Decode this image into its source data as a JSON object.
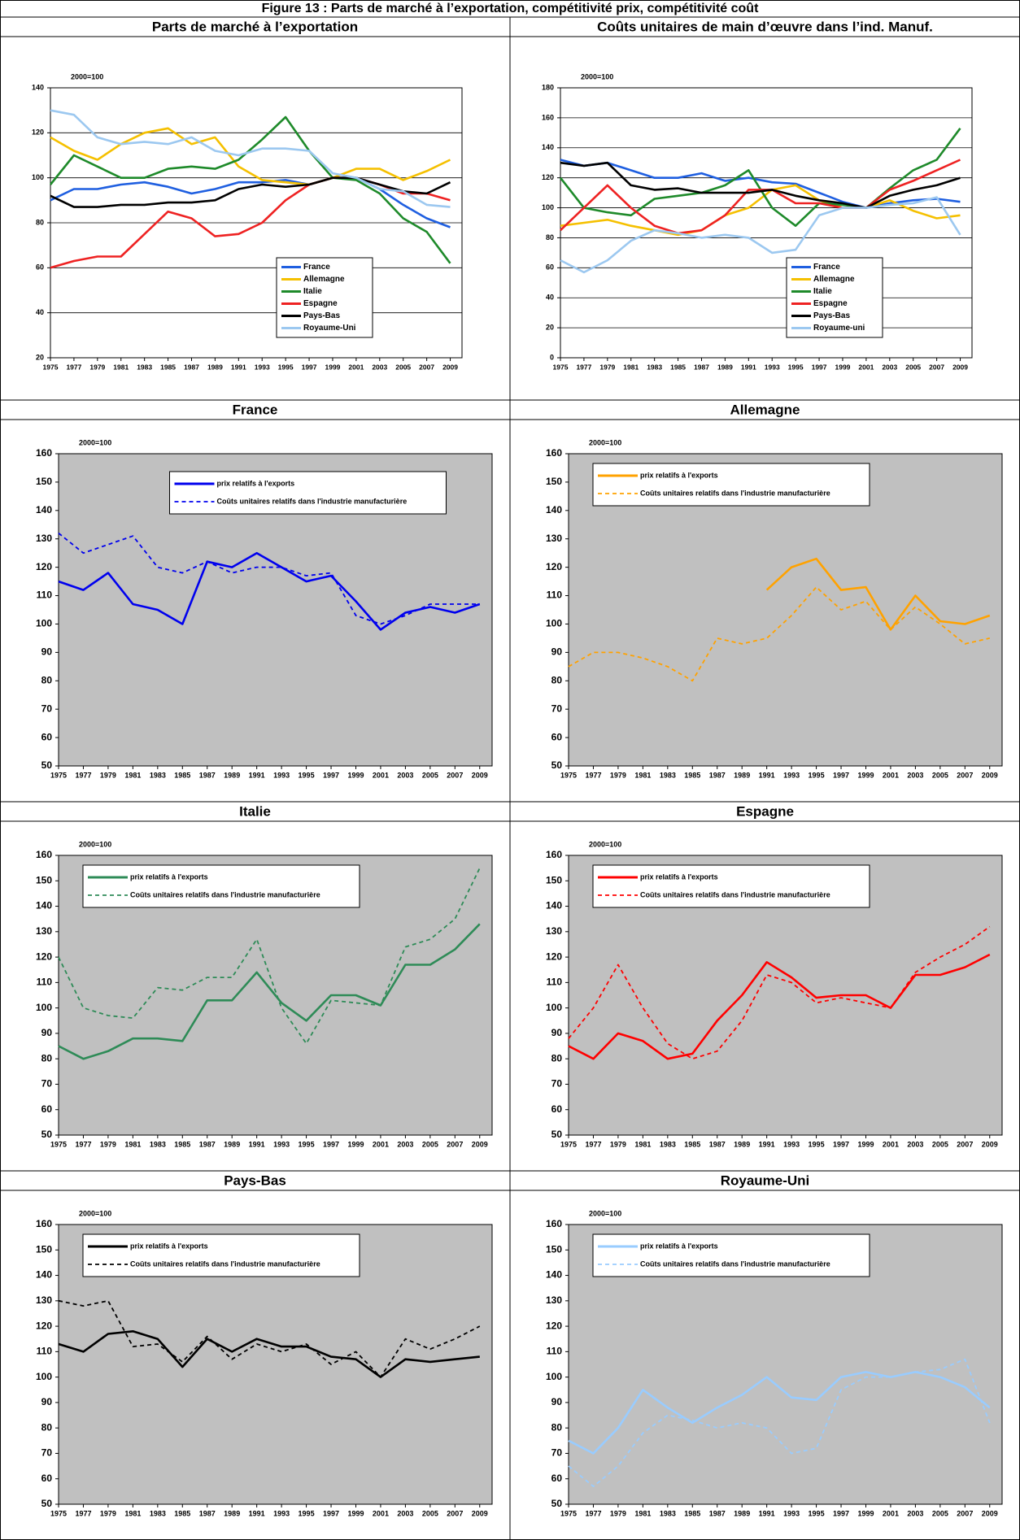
{
  "title": "Figure 13 : Parts de marché à l’exportation, compétitivité prix, compétitivité coût",
  "chart_data": [
    {
      "type": "line",
      "title": "Parts de marché à l’exportation",
      "annotation": "2000=100",
      "grid": true,
      "plot_background": "#ffffff",
      "legend": "lower right",
      "x": [
        1975,
        1977,
        1979,
        1981,
        1983,
        1985,
        1987,
        1989,
        1991,
        1993,
        1995,
        1997,
        1999,
        2001,
        2003,
        2005,
        2007,
        2009
      ],
      "xlim": [
        1975,
        2010
      ],
      "xticks": [
        1975,
        1977,
        1979,
        1981,
        1983,
        1985,
        1987,
        1989,
        1991,
        1993,
        1995,
        1997,
        1999,
        2001,
        2003,
        2005,
        2007,
        2009
      ],
      "ylim": [
        20,
        140
      ],
      "yticks": [
        20,
        40,
        60,
        80,
        100,
        120,
        140
      ],
      "series": [
        {
          "name": "France",
          "color": "#1f5fe0",
          "dash": false,
          "values": [
            90,
            95,
            95,
            97,
            98,
            96,
            93,
            95,
            98,
            98,
            99,
            97,
            100,
            100,
            95,
            88,
            82,
            78
          ]
        },
        {
          "name": "Allemagne",
          "color": "#f5c000",
          "dash": false,
          "values": [
            118,
            112,
            108,
            115,
            120,
            122,
            115,
            118,
            105,
            99,
            98,
            97,
            100,
            104,
            104,
            99,
            103,
            108
          ]
        },
        {
          "name": "Italie",
          "color": "#1e8a2a",
          "dash": false,
          "values": [
            97,
            110,
            105,
            100,
            100,
            104,
            105,
            104,
            108,
            117,
            127,
            112,
            100,
            99,
            93,
            82,
            76,
            62
          ]
        },
        {
          "name": "Espagne",
          "color": "#ee2222",
          "dash": false,
          "values": [
            60,
            63,
            65,
            65,
            75,
            85,
            82,
            74,
            75,
            80,
            90,
            97,
            100,
            100,
            97,
            93,
            93,
            90
          ]
        },
        {
          "name": "Pays-Bas",
          "color": "#000000",
          "dash": false,
          "values": [
            92,
            87,
            87,
            88,
            88,
            89,
            89,
            90,
            95,
            97,
            96,
            97,
            100,
            100,
            97,
            94,
            93,
            98
          ]
        },
        {
          "name": "Royaume-Uni",
          "color": "#9cc8f0",
          "dash": false,
          "values": [
            130,
            128,
            118,
            115,
            116,
            115,
            118,
            112,
            110,
            113,
            113,
            112,
            102,
            100,
            95,
            94,
            88,
            87
          ]
        }
      ]
    },
    {
      "type": "line",
      "title": "Coûts unitaires de main d’œuvre dans l’ind. Manuf.",
      "annotation": "2000=100",
      "grid": true,
      "plot_background": "#ffffff",
      "legend": "lower right",
      "x": [
        1975,
        1977,
        1979,
        1981,
        1983,
        1985,
        1987,
        1989,
        1991,
        1993,
        1995,
        1997,
        1999,
        2001,
        2003,
        2005,
        2007,
        2009
      ],
      "xlim": [
        1975,
        2010
      ],
      "xticks": [
        1975,
        1977,
        1979,
        1981,
        1983,
        1985,
        1987,
        1989,
        1991,
        1993,
        1995,
        1997,
        1999,
        2001,
        2003,
        2005,
        2007,
        2009
      ],
      "ylim": [
        0,
        180
      ],
      "yticks": [
        0,
        20,
        40,
        60,
        80,
        100,
        120,
        140,
        160,
        180
      ],
      "series": [
        {
          "name": "France",
          "color": "#1f5fe0",
          "dash": false,
          "values": [
            132,
            128,
            130,
            125,
            120,
            120,
            123,
            118,
            120,
            117,
            116,
            110,
            104,
            100,
            103,
            105,
            106,
            104
          ]
        },
        {
          "name": "Allemagne",
          "color": "#f5c000",
          "dash": false,
          "values": [
            88,
            90,
            92,
            88,
            85,
            82,
            85,
            95,
            100,
            112,
            115,
            105,
            100,
            100,
            105,
            98,
            93,
            95
          ]
        },
        {
          "name": "Italie",
          "color": "#1e8a2a",
          "dash": false,
          "values": [
            120,
            100,
            97,
            95,
            106,
            108,
            110,
            115,
            125,
            100,
            88,
            103,
            102,
            100,
            113,
            125,
            132,
            153
          ]
        },
        {
          "name": "Espagne",
          "color": "#ee2222",
          "dash": false,
          "values": [
            85,
            100,
            115,
            100,
            88,
            83,
            85,
            95,
            112,
            112,
            103,
            103,
            100,
            100,
            112,
            118,
            125,
            132
          ]
        },
        {
          "name": "Pays-Bas",
          "color": "#000000",
          "dash": false,
          "values": [
            130,
            128,
            130,
            115,
            112,
            113,
            110,
            110,
            110,
            112,
            108,
            105,
            103,
            100,
            108,
            112,
            115,
            120
          ]
        },
        {
          "name": "Royaume-uni",
          "color": "#9cc8f0",
          "dash": false,
          "values": [
            65,
            57,
            65,
            78,
            85,
            83,
            80,
            82,
            80,
            70,
            72,
            95,
            100,
            100,
            102,
            103,
            107,
            82
          ]
        }
      ]
    },
    {
      "type": "line",
      "title": "France",
      "annotation": "2000=100",
      "grid": false,
      "plot_background": "#c0c0c0",
      "legend": "upper center",
      "x": [
        1975,
        1977,
        1979,
        1981,
        1983,
        1985,
        1987,
        1989,
        1991,
        1993,
        1995,
        1997,
        1999,
        2001,
        2003,
        2005,
        2007,
        2009
      ],
      "xlim": [
        1975,
        2010
      ],
      "xticks": [
        1975,
        1977,
        1979,
        1981,
        1983,
        1985,
        1987,
        1989,
        1991,
        1993,
        1995,
        1997,
        1999,
        2001,
        2003,
        2005,
        2007,
        2009
      ],
      "ylim": [
        50,
        160
      ],
      "yticks": [
        50,
        60,
        70,
        80,
        90,
        100,
        110,
        120,
        130,
        140,
        150,
        160
      ],
      "series": [
        {
          "name": "prix relatifs à l'exports",
          "color": "#0000ee",
          "dash": false,
          "values": [
            115,
            112,
            118,
            107,
            105,
            100,
            122,
            120,
            125,
            120,
            115,
            117,
            108,
            98,
            104,
            106,
            104,
            107
          ]
        },
        {
          "name": "Coûts unitaires relatifs dans l'industrie manufacturière",
          "color": "#0000ee",
          "dash": true,
          "values": [
            132,
            125,
            128,
            131,
            120,
            118,
            122,
            118,
            120,
            120,
            117,
            118,
            103,
            100,
            103,
            107,
            107,
            107
          ]
        }
      ]
    },
    {
      "type": "line",
      "title": "Allemagne",
      "annotation": "2000=100",
      "grid": false,
      "plot_background": "#c0c0c0",
      "legend": "upper left",
      "x": [
        1975,
        1977,
        1979,
        1981,
        1983,
        1985,
        1987,
        1989,
        1991,
        1993,
        1995,
        1997,
        1999,
        2001,
        2003,
        2005,
        2007,
        2009
      ],
      "xlim": [
        1975,
        2010
      ],
      "xticks": [
        1975,
        1977,
        1979,
        1981,
        1983,
        1985,
        1987,
        1989,
        1991,
        1993,
        1995,
        1997,
        1999,
        2001,
        2003,
        2005,
        2007,
        2009
      ],
      "ylim": [
        50,
        160
      ],
      "yticks": [
        50,
        60,
        70,
        80,
        90,
        100,
        110,
        120,
        130,
        140,
        150,
        160
      ],
      "series": [
        {
          "name": "prix relatifs à l'exports",
          "color": "#ffa200",
          "dash": false,
          "values": [
            null,
            null,
            null,
            null,
            null,
            null,
            null,
            null,
            112,
            120,
            123,
            112,
            113,
            98,
            110,
            101,
            100,
            103
          ]
        },
        {
          "name": "Coûts unitaires relatifs dans l'industrie manufacturière",
          "color": "#ffa200",
          "dash": true,
          "values": [
            85,
            90,
            90,
            88,
            85,
            80,
            95,
            93,
            95,
            103,
            113,
            105,
            108,
            98,
            106,
            100,
            93,
            95
          ]
        }
      ]
    },
    {
      "type": "line",
      "title": "Italie",
      "annotation": "2000=100",
      "grid": false,
      "plot_background": "#c0c0c0",
      "legend": "upper left",
      "x": [
        1975,
        1977,
        1979,
        1981,
        1983,
        1985,
        1987,
        1989,
        1991,
        1993,
        1995,
        1997,
        1999,
        2001,
        2003,
        2005,
        2007,
        2009
      ],
      "xlim": [
        1975,
        2010
      ],
      "xticks": [
        1975,
        1977,
        1979,
        1981,
        1983,
        1985,
        1987,
        1989,
        1991,
        1993,
        1995,
        1997,
        1999,
        2001,
        2003,
        2005,
        2007,
        2009
      ],
      "ylim": [
        50,
        160
      ],
      "yticks": [
        50,
        60,
        70,
        80,
        90,
        100,
        110,
        120,
        130,
        140,
        150,
        160
      ],
      "series": [
        {
          "name": "prix relatifs à l'exports",
          "color": "#2e8b57",
          "dash": false,
          "values": [
            85,
            80,
            83,
            88,
            88,
            87,
            103,
            103,
            114,
            102,
            95,
            105,
            105,
            101,
            117,
            117,
            123,
            133
          ]
        },
        {
          "name": "Coûts unitaires relatifs dans l'industrie manufacturière",
          "color": "#2e8b57",
          "dash": true,
          "values": [
            120,
            100,
            97,
            96,
            108,
            107,
            112,
            112,
            127,
            100,
            86,
            103,
            102,
            101,
            124,
            127,
            135,
            155
          ]
        }
      ]
    },
    {
      "type": "line",
      "title": "Espagne",
      "annotation": "2000=100",
      "grid": false,
      "plot_background": "#c0c0c0",
      "legend": "upper left",
      "x": [
        1975,
        1977,
        1979,
        1981,
        1983,
        1985,
        1987,
        1989,
        1991,
        1993,
        1995,
        1997,
        1999,
        2001,
        2003,
        2005,
        2007,
        2009
      ],
      "xlim": [
        1975,
        2010
      ],
      "xticks": [
        1975,
        1977,
        1979,
        1981,
        1983,
        1985,
        1987,
        1989,
        1991,
        1993,
        1995,
        1997,
        1999,
        2001,
        2003,
        2005,
        2007,
        2009
      ],
      "ylim": [
        50,
        160
      ],
      "yticks": [
        50,
        60,
        70,
        80,
        90,
        100,
        110,
        120,
        130,
        140,
        150,
        160
      ],
      "series": [
        {
          "name": "prix relatifs à l'exports",
          "color": "#ff0000",
          "dash": false,
          "values": [
            85,
            80,
            90,
            87,
            80,
            82,
            95,
            105,
            118,
            112,
            104,
            105,
            105,
            100,
            113,
            113,
            116,
            121
          ]
        },
        {
          "name": "Coûts unitaires relatifs dans l'industrie manufacturière",
          "color": "#ff0000",
          "dash": true,
          "values": [
            88,
            100,
            117,
            100,
            86,
            80,
            83,
            95,
            113,
            110,
            102,
            104,
            102,
            100,
            114,
            120,
            125,
            132
          ]
        }
      ]
    },
    {
      "type": "line",
      "title": "Pays-Bas",
      "annotation": "2000=100",
      "grid": false,
      "plot_background": "#c0c0c0",
      "legend": "upper left",
      "x": [
        1975,
        1977,
        1979,
        1981,
        1983,
        1985,
        1987,
        1989,
        1991,
        1993,
        1995,
        1997,
        1999,
        2001,
        2003,
        2005,
        2007,
        2009
      ],
      "xlim": [
        1975,
        2010
      ],
      "xticks": [
        1975,
        1977,
        1979,
        1981,
        1983,
        1985,
        1987,
        1989,
        1991,
        1993,
        1995,
        1997,
        1999,
        2001,
        2003,
        2005,
        2007,
        2009
      ],
      "ylim": [
        50,
        160
      ],
      "yticks": [
        50,
        60,
        70,
        80,
        90,
        100,
        110,
        120,
        130,
        140,
        150,
        160
      ],
      "series": [
        {
          "name": "prix relatifs à l'exports",
          "color": "#000000",
          "dash": false,
          "values": [
            113,
            110,
            117,
            118,
            115,
            104,
            115,
            110,
            115,
            112,
            112,
            108,
            107,
            100,
            107,
            106,
            107,
            108
          ]
        },
        {
          "name": "Coûts unitaires relatifs dans l'industrie manufacturière",
          "color": "#000000",
          "dash": true,
          "values": [
            130,
            128,
            130,
            112,
            113,
            106,
            116,
            107,
            113,
            110,
            113,
            105,
            110,
            100,
            115,
            111,
            115,
            120
          ]
        }
      ]
    },
    {
      "type": "line",
      "title": "Royaume-Uni",
      "annotation": "2000=100",
      "grid": false,
      "plot_background": "#c0c0c0",
      "legend": "upper left",
      "x": [
        1975,
        1977,
        1979,
        1981,
        1983,
        1985,
        1987,
        1989,
        1991,
        1993,
        1995,
        1997,
        1999,
        2001,
        2003,
        2005,
        2007,
        2009
      ],
      "xlim": [
        1975,
        2010
      ],
      "xticks": [
        1975,
        1977,
        1979,
        1981,
        1983,
        1985,
        1987,
        1989,
        1991,
        1993,
        1995,
        1997,
        1999,
        2001,
        2003,
        2005,
        2007,
        2009
      ],
      "ylim": [
        50,
        160
      ],
      "yticks": [
        50,
        60,
        70,
        80,
        90,
        100,
        110,
        120,
        130,
        140,
        150,
        160
      ],
      "series": [
        {
          "name": "prix relatifs à l'exports",
          "color": "#99ccff",
          "dash": false,
          "values": [
            75,
            70,
            80,
            95,
            88,
            82,
            88,
            93,
            100,
            92,
            91,
            100,
            102,
            100,
            102,
            100,
            96,
            88
          ]
        },
        {
          "name": "Coûts unitaires relatifs dans l'industrie manufacturière",
          "color": "#99ccff",
          "dash": true,
          "values": [
            65,
            57,
            65,
            78,
            85,
            83,
            80,
            82,
            80,
            70,
            72,
            95,
            100,
            100,
            102,
            103,
            107,
            82
          ]
        }
      ]
    }
  ]
}
